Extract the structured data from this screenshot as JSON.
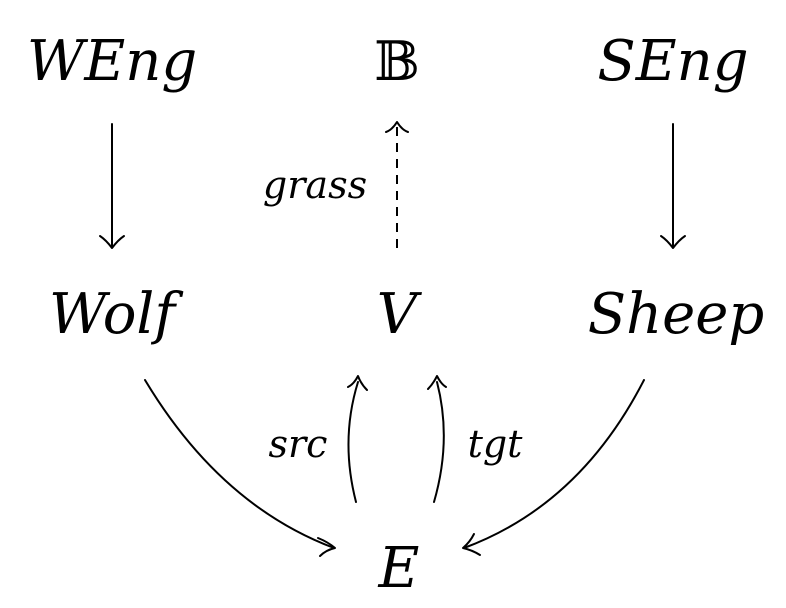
{
  "objects": {
    "weng": "WEng",
    "bool": "𝔹",
    "seng": "SEng",
    "wolf": "Wolf",
    "vertex": "V",
    "sheep": "Sheep",
    "edge": "E"
  },
  "morphisms": {
    "grass": "grass",
    "src": "src",
    "tgt": "tgt"
  }
}
